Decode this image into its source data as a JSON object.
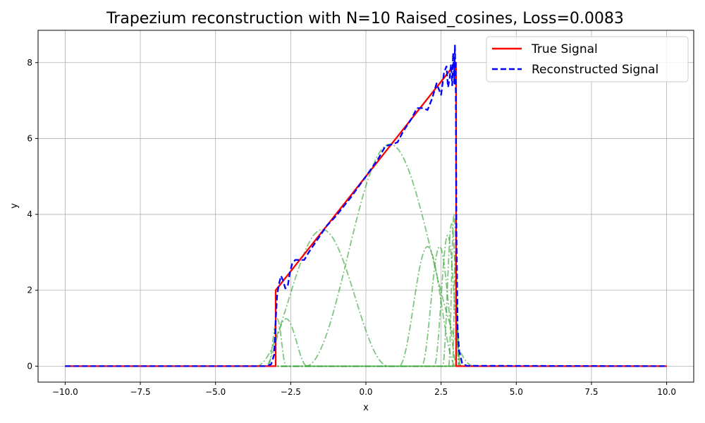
{
  "chart_data": {
    "type": "line",
    "title": "Trapezium reconstruction with N=10 Raised_cosines, Loss=0.0083",
    "xlabel": "x",
    "ylabel": "y",
    "xlim": [
      -10.9,
      10.9
    ],
    "ylim": [
      -0.42,
      8.85
    ],
    "xticks": [
      -10.0,
      -7.5,
      -5.0,
      -2.5,
      0.0,
      2.5,
      5.0,
      7.5,
      10.0
    ],
    "xtick_labels": [
      "−10.0",
      "−7.5",
      "−5.0",
      "−2.5",
      "0.0",
      "2.5",
      "5.0",
      "7.5",
      "10.0"
    ],
    "yticks": [
      0,
      2,
      4,
      6,
      8
    ],
    "ytick_labels": [
      "0",
      "2",
      "4",
      "6",
      "8"
    ],
    "grid": true,
    "legend_position": "top-right",
    "series": [
      {
        "name": "True Signal",
        "color": "#ff0000",
        "style": "solid",
        "points": [
          [
            -10,
            0
          ],
          [
            -3.0,
            0
          ],
          [
            -3.0,
            2.0
          ],
          [
            3.0,
            8.0
          ],
          [
            3.0,
            0
          ],
          [
            10,
            0
          ]
        ]
      },
      {
        "name": "Reconstructed Signal",
        "color": "#0000ff",
        "style": "dashed",
        "points": [
          [
            -10,
            0
          ],
          [
            -3.3,
            0
          ],
          [
            -3.15,
            0.05
          ],
          [
            -3.05,
            0.3
          ],
          [
            -3.0,
            1.2
          ],
          [
            -2.95,
            1.9
          ],
          [
            -2.88,
            2.2
          ],
          [
            -2.82,
            2.38
          ],
          [
            -2.75,
            2.25
          ],
          [
            -2.68,
            2.05
          ],
          [
            -2.6,
            2.1
          ],
          [
            -2.52,
            2.5
          ],
          [
            -2.45,
            2.7
          ],
          [
            -2.35,
            2.8
          ],
          [
            -2.2,
            2.8
          ],
          [
            -2.05,
            2.8
          ],
          [
            -1.9,
            3.0
          ],
          [
            -1.6,
            3.35
          ],
          [
            -1.3,
            3.7
          ],
          [
            -1.0,
            3.95
          ],
          [
            -0.5,
            4.45
          ],
          [
            0.0,
            5.0
          ],
          [
            0.4,
            5.45
          ],
          [
            0.65,
            5.8
          ],
          [
            0.9,
            5.85
          ],
          [
            1.05,
            5.9
          ],
          [
            1.25,
            6.2
          ],
          [
            1.5,
            6.5
          ],
          [
            1.7,
            6.8
          ],
          [
            1.9,
            6.8
          ],
          [
            2.05,
            6.75
          ],
          [
            2.2,
            7.05
          ],
          [
            2.35,
            7.45
          ],
          [
            2.5,
            7.15
          ],
          [
            2.6,
            7.75
          ],
          [
            2.68,
            7.9
          ],
          [
            2.73,
            7.35
          ],
          [
            2.78,
            7.55
          ],
          [
            2.83,
            7.95
          ],
          [
            2.87,
            7.4
          ],
          [
            2.9,
            8.25
          ],
          [
            2.94,
            7.45
          ],
          [
            2.96,
            8.45
          ],
          [
            2.99,
            7.2
          ],
          [
            3.01,
            3.5
          ],
          [
            3.05,
            1.0
          ],
          [
            3.1,
            0.4
          ],
          [
            3.2,
            0.08
          ],
          [
            3.35,
            0.01
          ],
          [
            10,
            0
          ]
        ]
      }
    ],
    "basis_color": "#2ca02c",
    "basis_functions": [
      {
        "center": -2.65,
        "width": 0.7,
        "amp": 1.25
      },
      {
        "center": -2.95,
        "width": 0.3,
        "amp": 1.25
      },
      {
        "center": -1.45,
        "width": 2.2,
        "amp": 3.6
      },
      {
        "center": 0.8,
        "width": 2.8,
        "amp": 5.85
      },
      {
        "center": 2.05,
        "width": 0.95,
        "amp": 3.15
      },
      {
        "center": 2.45,
        "width": 0.6,
        "amp": 3.15
      },
      {
        "center": 2.72,
        "width": 0.45,
        "amp": 3.45
      },
      {
        "center": 2.85,
        "width": 0.3,
        "amp": 3.75
      },
      {
        "center": 2.93,
        "width": 0.18,
        "amp": 4.0
      },
      {
        "center": 2.98,
        "width": 0.1,
        "amp": 3.0
      }
    ]
  }
}
